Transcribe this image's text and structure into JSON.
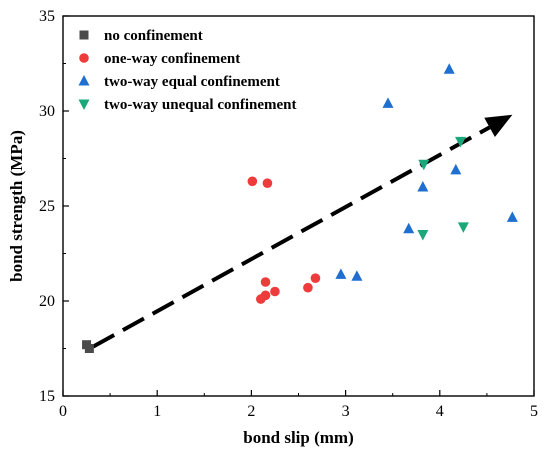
{
  "chart_data": {
    "type": "scatter",
    "xlabel": "bond slip (mm)",
    "ylabel": "bond strength (MPa)",
    "xlim": [
      0,
      5
    ],
    "ylim": [
      15,
      35
    ],
    "x_ticks": [
      "0",
      "1",
      "2",
      "3",
      "4",
      "5"
    ],
    "y_ticks": [
      "15",
      "20",
      "25",
      "30",
      "35"
    ],
    "legend_position": "top-left",
    "grid": false,
    "series": [
      {
        "name": "no confinement",
        "marker": "square",
        "color": "#4a4a4a",
        "points": [
          [
            0.25,
            17.7
          ],
          [
            0.28,
            17.5
          ]
        ]
      },
      {
        "name": "one-way confinement",
        "marker": "circle",
        "color": "#ee3b3b",
        "points": [
          [
            2.01,
            26.3
          ],
          [
            2.17,
            26.2
          ],
          [
            2.15,
            21.0
          ],
          [
            2.68,
            21.2
          ],
          [
            2.6,
            20.7
          ],
          [
            2.25,
            20.5
          ],
          [
            2.15,
            20.3
          ],
          [
            2.1,
            20.1
          ]
        ]
      },
      {
        "name": "two-way equal confinement",
        "marker": "triangle-up",
        "color": "#1e6fd0",
        "points": [
          [
            4.1,
            32.2
          ],
          [
            3.45,
            30.4
          ],
          [
            3.82,
            26.0
          ],
          [
            4.17,
            26.9
          ],
          [
            4.77,
            24.4
          ],
          [
            3.67,
            23.8
          ],
          [
            2.95,
            21.4
          ],
          [
            3.12,
            21.3
          ]
        ]
      },
      {
        "name": "two-way unequal confinement",
        "marker": "triangle-down",
        "color": "#1aa87a",
        "points": [
          [
            4.22,
            28.4
          ],
          [
            3.83,
            27.2
          ],
          [
            4.25,
            23.9
          ],
          [
            3.82,
            23.5
          ]
        ]
      }
    ],
    "arrow": {
      "color": "#000000",
      "style": "dashed",
      "from": [
        0.32,
        17.6
      ],
      "to": [
        4.77,
        29.8
      ]
    }
  }
}
